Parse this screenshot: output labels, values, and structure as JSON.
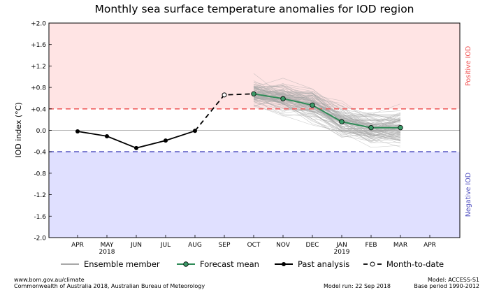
{
  "chart_data": {
    "type": "line",
    "title": "Monthly sea surface temperature anomalies for IOD region",
    "ylabel": "IOD index (°C)",
    "ylim": [
      -2.0,
      2.0
    ],
    "yticks": [
      {
        "value": 2.0,
        "label": "+2.0"
      },
      {
        "value": 1.6,
        "label": "+1.6"
      },
      {
        "value": 1.2,
        "label": "+1.2"
      },
      {
        "value": 0.8,
        "label": "+0.8"
      },
      {
        "value": 0.4,
        "label": "+0.4"
      },
      {
        "value": 0.0,
        "label": "0.0"
      },
      {
        "value": -0.4,
        "label": "-0.4"
      },
      {
        "value": -0.8,
        "label": "-0.8"
      },
      {
        "value": -1.2,
        "label": "-1.2"
      },
      {
        "value": -1.6,
        "label": "-1.6"
      },
      {
        "value": -2.0,
        "label": "-2.0"
      }
    ],
    "months": [
      "APR",
      "MAY",
      "JUN",
      "JUL",
      "AUG",
      "SEP",
      "OCT",
      "NOV",
      "DEC",
      "JAN",
      "FEB",
      "MAR",
      "APR"
    ],
    "year_labels": [
      {
        "month_index": 1,
        "label": "2018"
      },
      {
        "month_index": 9,
        "label": "2019"
      }
    ],
    "thresholds": {
      "positive": 0.4,
      "negative": -0.4
    },
    "region_labels": {
      "positive": "Positive IOD",
      "negative": "Negative IOD"
    },
    "series": [
      {
        "name": "Past analysis",
        "month_index": [
          0,
          1,
          2,
          3,
          4
        ],
        "values": [
          -0.02,
          -0.11,
          -0.33,
          -0.19,
          -0.01
        ]
      },
      {
        "name": "Month-to-date",
        "month_index": [
          4,
          5,
          6
        ],
        "values": [
          -0.01,
          0.66,
          0.68
        ]
      },
      {
        "name": "Forecast mean",
        "month_index": [
          6,
          7,
          8,
          9,
          10,
          11
        ],
        "values": [
          0.68,
          0.59,
          0.47,
          0.16,
          0.05,
          0.05
        ]
      }
    ],
    "ensemble": {
      "name": "Ensemble member",
      "month_index": [
        6,
        7,
        8,
        9,
        10,
        11
      ],
      "mean": [
        0.68,
        0.59,
        0.47,
        0.16,
        0.05,
        0.05
      ],
      "spread": [
        0.22,
        0.26,
        0.3,
        0.28,
        0.25,
        0.27
      ],
      "member_count": 99
    },
    "legend": [
      {
        "key": "ensemble",
        "label": "Ensemble member"
      },
      {
        "key": "forecast",
        "label": "Forecast mean"
      },
      {
        "key": "past",
        "label": "Past analysis"
      },
      {
        "key": "mtd",
        "label": "Month-to-date"
      }
    ],
    "legend_position": "bottom",
    "colors": {
      "positive_fill": "#ffe4e4",
      "negative_fill": "#e0e0ff",
      "positive_line": "#f06060",
      "negative_line": "#5050c0",
      "forecast": "#2e8b57",
      "forecast_marker": "#3c9a68",
      "past": "#000000",
      "ensemble": "#a8a8a8",
      "positive_text": "#f05050",
      "negative_text": "#5050c0"
    }
  },
  "footer": {
    "site": "www.bom.gov.au/climate",
    "copyright": "Commonwealth of Australia 2018, Australian Bureau of Meteorology",
    "model_run": "Model run: 22 Sep 2018",
    "model": "Model: ACCESS-S1",
    "base_period": "Base period 1990-2012"
  }
}
